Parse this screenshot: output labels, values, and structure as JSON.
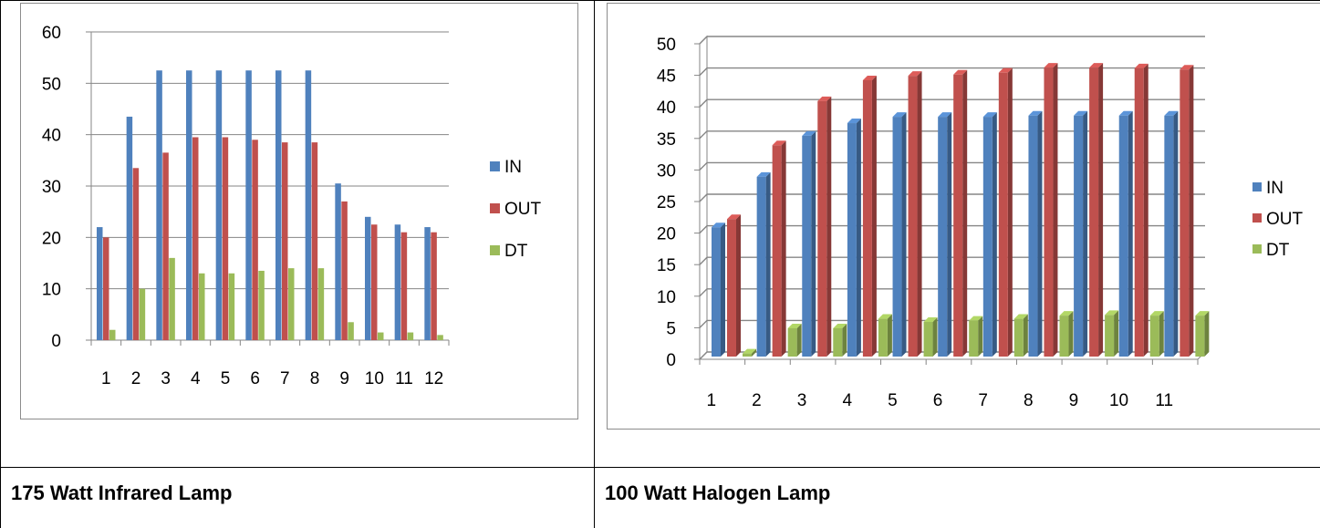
{
  "captions": {
    "left": "175 Watt Infrared Lamp",
    "right": "100 Watt Halogen Lamp"
  },
  "colors": {
    "IN": "#4f81bd",
    "OUT": "#c0504d",
    "DT": "#9bbb59"
  },
  "chart_data": [
    {
      "type": "bar",
      "categories": [
        "1",
        "2",
        "3",
        "4",
        "5",
        "6",
        "7",
        "8",
        "9",
        "10",
        "11",
        "12"
      ],
      "series": [
        {
          "name": "IN",
          "values": [
            22,
            43.5,
            52.5,
            52.5,
            52.5,
            52.5,
            52.5,
            52.5,
            30.5,
            24,
            22.5,
            22
          ]
        },
        {
          "name": "OUT",
          "values": [
            20,
            33.5,
            36.5,
            39.5,
            39.5,
            39,
            38.5,
            38.5,
            27,
            22.5,
            21,
            21
          ]
        },
        {
          "name": "DT",
          "values": [
            2,
            10,
            16,
            13,
            13,
            13.5,
            14,
            14,
            3.5,
            1.5,
            1.5,
            1
          ]
        }
      ],
      "ylim": [
        0,
        60
      ],
      "yticks": [
        "0",
        "10",
        "20",
        "30",
        "40",
        "50",
        "60"
      ],
      "grid": true,
      "legend": "right"
    },
    {
      "type": "bar",
      "categories": [
        "1",
        "2",
        "3",
        "4",
        "5",
        "6",
        "7",
        "8",
        "9",
        "10",
        "11"
      ],
      "series": [
        {
          "name": "IN",
          "values": [
            21.5,
            29.5,
            36,
            38,
            39,
            39,
            39,
            39.2,
            39.2,
            39.2,
            39.2
          ]
        },
        {
          "name": "OUT",
          "values": [
            22.8,
            34.5,
            41.5,
            44.8,
            45.5,
            45.7,
            46,
            46.8,
            46.8,
            46.7,
            46.5
          ]
        },
        {
          "name": "DT",
          "values": [
            1.5,
            5.5,
            5.5,
            7,
            6.5,
            6.7,
            7,
            7.5,
            7.6,
            7.5,
            7.5
          ]
        }
      ],
      "ylim": [
        0,
        50
      ],
      "yticks": [
        "0",
        "5",
        "10",
        "15",
        "20",
        "25",
        "30",
        "35",
        "40",
        "45",
        "50"
      ],
      "grid": true,
      "legend": "right"
    }
  ]
}
